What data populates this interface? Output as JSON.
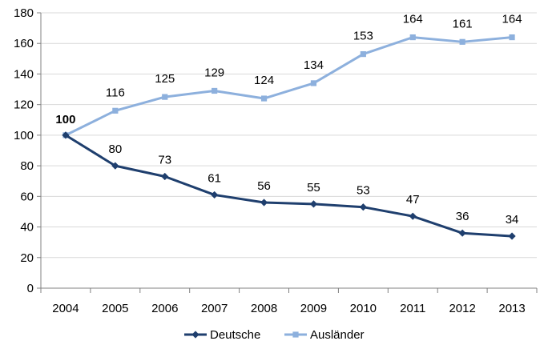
{
  "chart_data": {
    "type": "line",
    "categories": [
      "2004",
      "2005",
      "2006",
      "2007",
      "2008",
      "2009",
      "2010",
      "2011",
      "2012",
      "2013"
    ],
    "series": [
      {
        "name": "Deutsche",
        "values": [
          100,
          80,
          73,
          61,
          56,
          55,
          53,
          47,
          36,
          34
        ],
        "color": "#1F3F6E",
        "marker": "diamond"
      },
      {
        "name": "Ausländer",
        "values": [
          100,
          116,
          125,
          129,
          124,
          134,
          153,
          164,
          161,
          164
        ],
        "color": "#8DB0DD",
        "marker": "square"
      }
    ],
    "y_ticks": [
      "0",
      "20",
      "40",
      "60",
      "80",
      "100",
      "120",
      "140",
      "160",
      "180"
    ],
    "ylim": [
      0,
      180
    ],
    "start_label": "100",
    "legend_position": "bottom",
    "grid": true,
    "grid_color": "#D9D9D9",
    "axis_color": "#808080"
  }
}
